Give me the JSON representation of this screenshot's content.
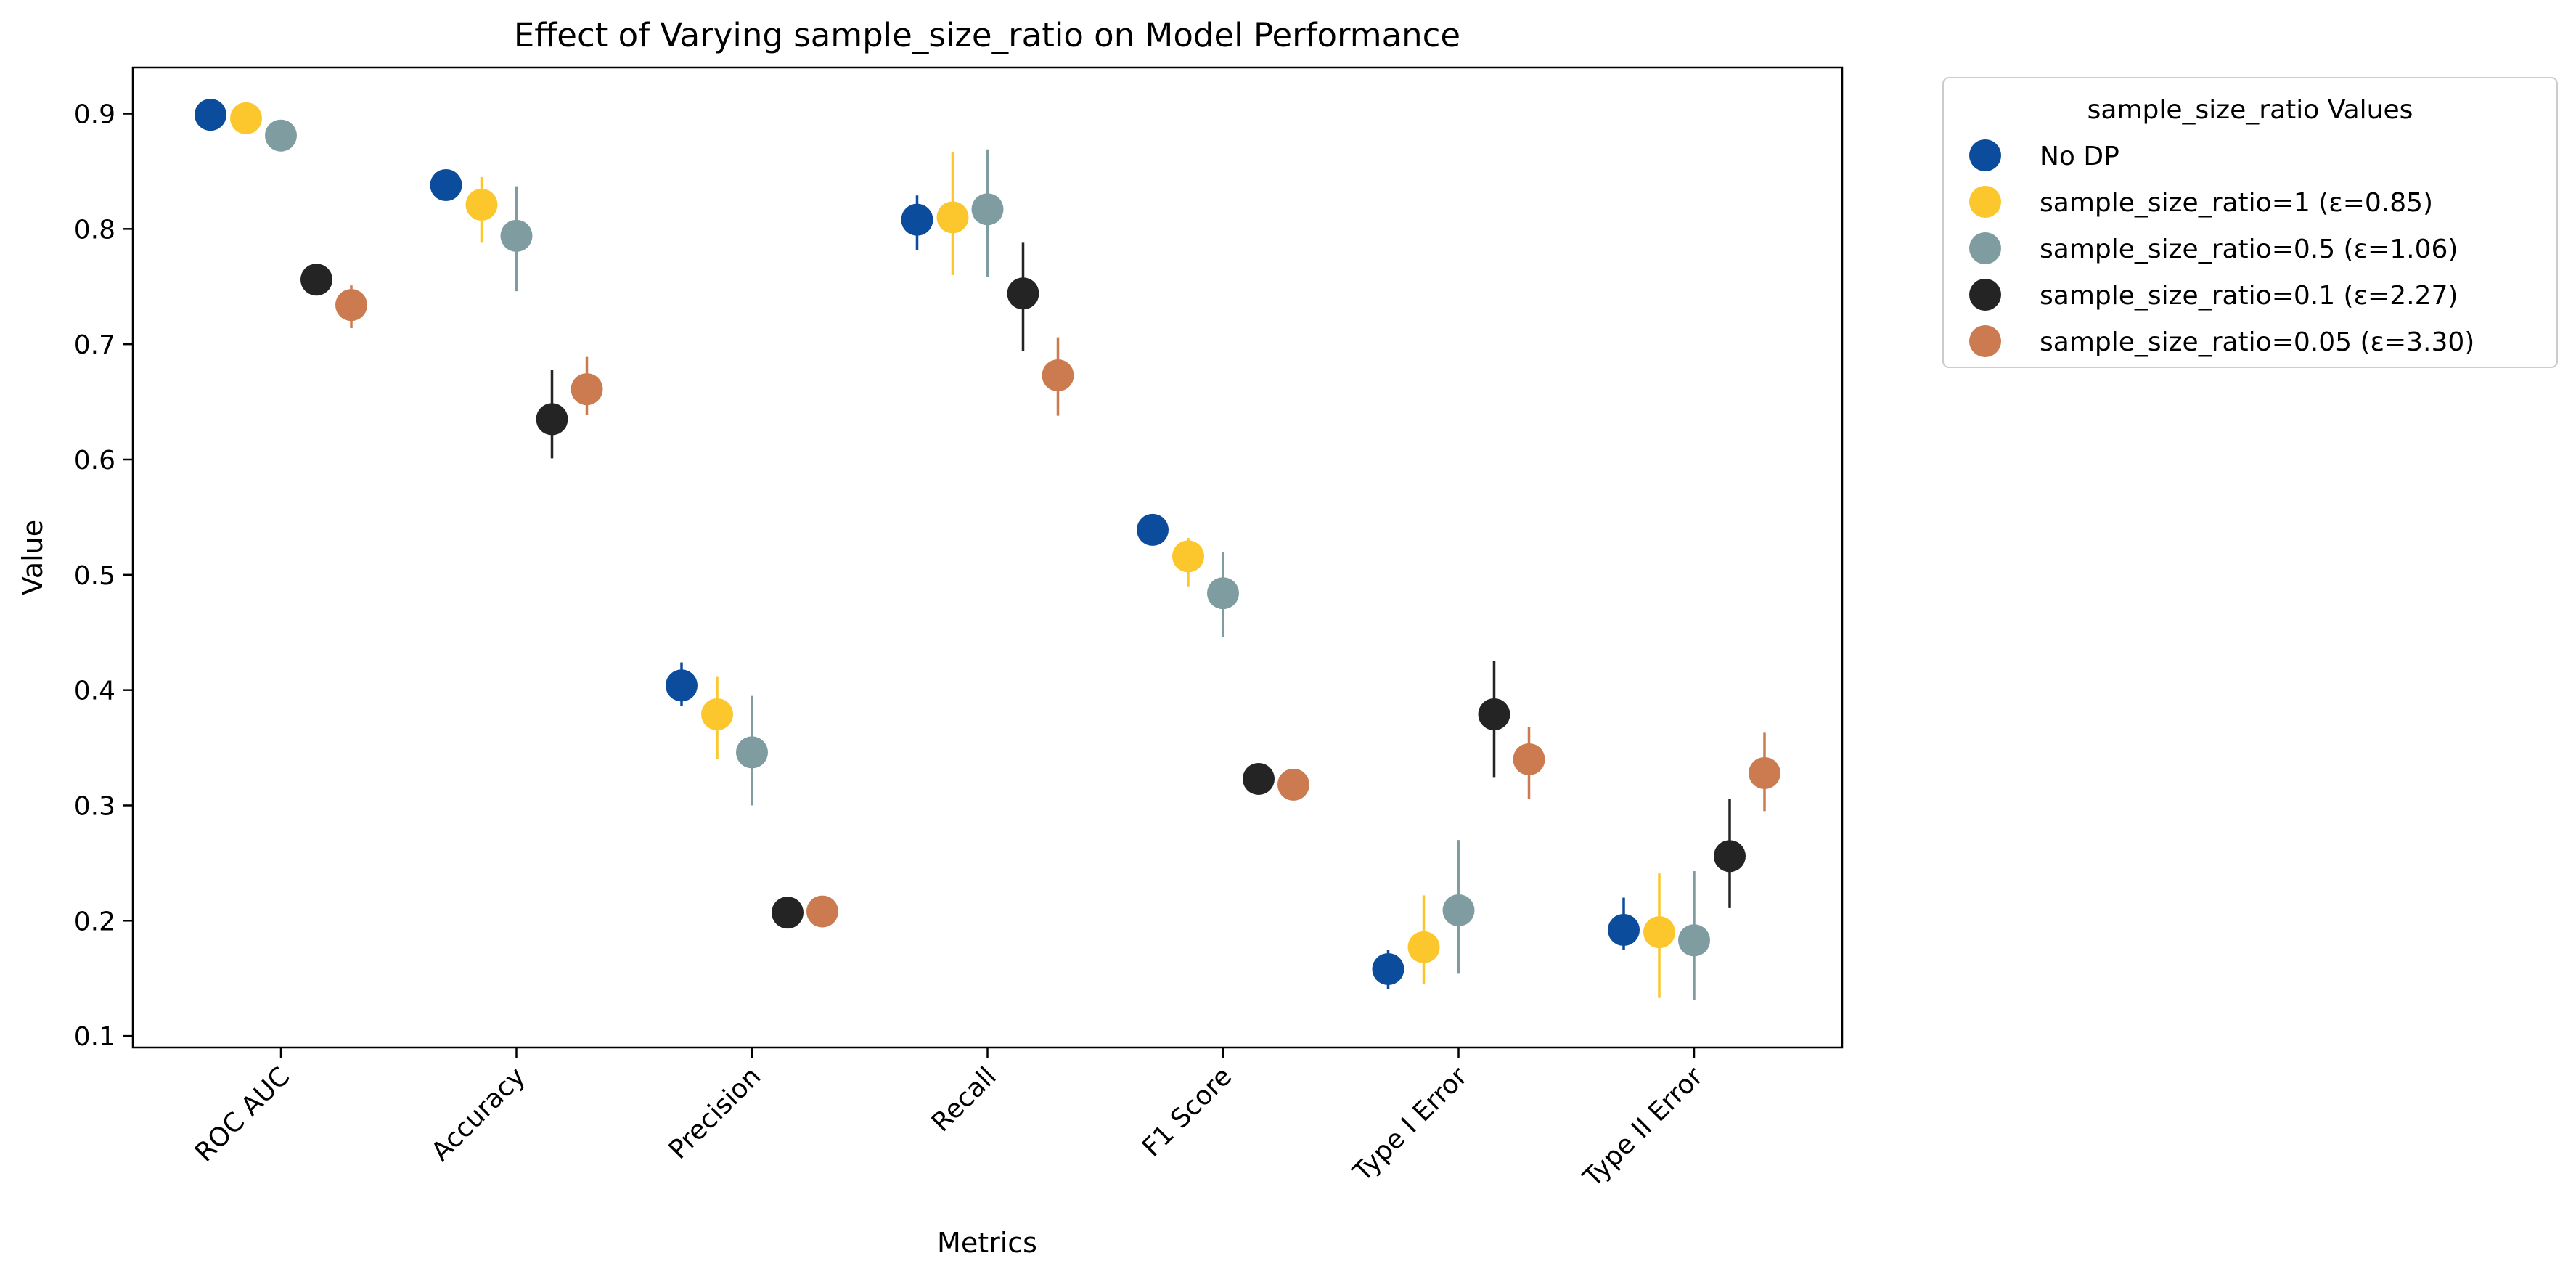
{
  "chart_data": {
    "type": "scatter",
    "title": "Effect of Varying sample_size_ratio on Model Performance",
    "xlabel": "Metrics",
    "ylabel": "Value",
    "ylim": [
      0.09,
      0.94
    ],
    "yticks": [
      "0.1",
      "0.2",
      "0.3",
      "0.4",
      "0.5",
      "0.6",
      "0.7",
      "0.8",
      "0.9"
    ],
    "categories": [
      "ROC AUC",
      "Accuracy",
      "Precision",
      "Recall",
      "F1 Score",
      "Type I Error",
      "Type II Error"
    ],
    "grid": false,
    "legend": {
      "title": "sample_size_ratio Values",
      "position": "outside-top-right"
    },
    "series": [
      {
        "name": "No DP",
        "color": "#0b4c9c",
        "values": [
          0.899,
          0.838,
          0.404,
          0.808,
          0.539,
          0.158,
          0.192
        ],
        "err_low": [
          0.899,
          0.838,
          0.386,
          0.782,
          0.539,
          0.141,
          0.175
        ],
        "err_high": [
          0.899,
          0.838,
          0.424,
          0.829,
          0.539,
          0.175,
          0.22
        ]
      },
      {
        "name": "sample_size_ratio=1 (ε=0.85)",
        "color": "#fcc72c",
        "values": [
          0.896,
          0.821,
          0.379,
          0.81,
          0.516,
          0.177,
          0.19
        ],
        "err_low": [
          0.896,
          0.788,
          0.34,
          0.76,
          0.49,
          0.145,
          0.133
        ],
        "err_high": [
          0.896,
          0.845,
          0.412,
          0.867,
          0.532,
          0.222,
          0.241
        ]
      },
      {
        "name": "sample_size_ratio=0.5 (ε=1.06)",
        "color": "#7f9da1",
        "values": [
          0.881,
          0.794,
          0.346,
          0.817,
          0.484,
          0.209,
          0.183
        ],
        "err_low": [
          0.881,
          0.746,
          0.3,
          0.758,
          0.446,
          0.154,
          0.131
        ],
        "err_high": [
          0.881,
          0.837,
          0.395,
          0.869,
          0.52,
          0.27,
          0.243
        ]
      },
      {
        "name": "sample_size_ratio=0.1 (ε=2.27)",
        "color": "#242424",
        "values": [
          0.756,
          0.635,
          0.207,
          0.744,
          0.323,
          0.379,
          0.256
        ],
        "err_low": [
          0.756,
          0.601,
          0.207,
          0.694,
          0.323,
          0.324,
          0.211
        ],
        "err_high": [
          0.756,
          0.678,
          0.207,
          0.788,
          0.323,
          0.425,
          0.306
        ]
      },
      {
        "name": "sample_size_ratio=0.05 (ε=3.30)",
        "color": "#cb7b4f",
        "values": [
          0.734,
          0.661,
          0.208,
          0.673,
          0.318,
          0.34,
          0.328
        ],
        "err_low": [
          0.714,
          0.639,
          0.208,
          0.638,
          0.318,
          0.306,
          0.295
        ],
        "err_high": [
          0.751,
          0.689,
          0.208,
          0.706,
          0.318,
          0.368,
          0.363
        ]
      }
    ]
  }
}
